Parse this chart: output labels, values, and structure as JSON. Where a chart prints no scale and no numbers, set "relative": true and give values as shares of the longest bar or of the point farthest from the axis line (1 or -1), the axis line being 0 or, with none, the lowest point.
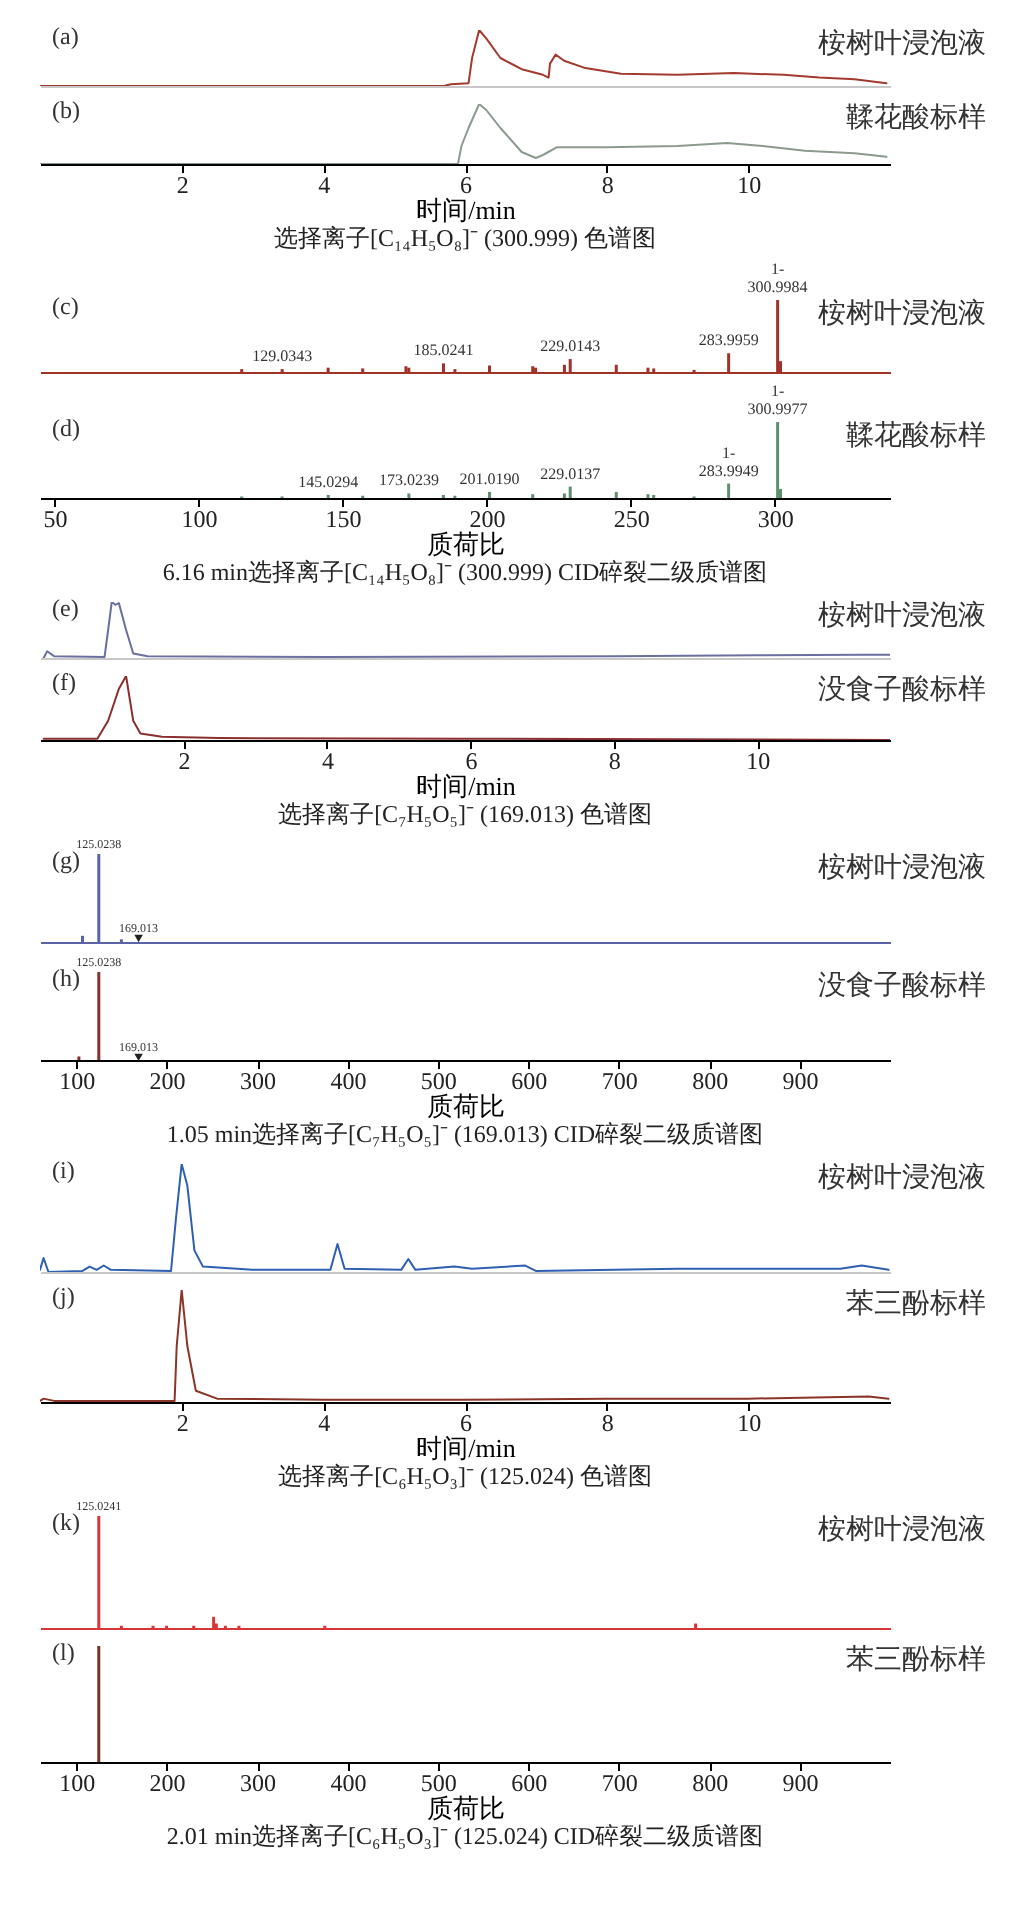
{
  "chart_data": [
    {
      "type": "line",
      "relative": true,
      "tick_labels": false,
      "xlim": [
        0,
        12
      ],
      "color": "#a23a2e",
      "annotations": [
        "(a)",
        "桉树叶浸泡液"
      ],
      "x": [
        0,
        5.7,
        5.8,
        6.05,
        6.1,
        6.2,
        6.3,
        6.5,
        6.8,
        7.1,
        7.18,
        7.2,
        7.28,
        7.4,
        7.7,
        8.2,
        9,
        9.8,
        10.5,
        11,
        11.5,
        11.95
      ],
      "values": [
        0,
        0,
        0.03,
        0.05,
        0.5,
        1,
        0.85,
        0.5,
        0.3,
        0.2,
        0.15,
        0.4,
        0.56,
        0.45,
        0.32,
        0.22,
        0.2,
        0.23,
        0.2,
        0.15,
        0.12,
        0.05
      ]
    },
    {
      "type": "line",
      "relative": true,
      "tick_labels": "x",
      "xlim": [
        0,
        12
      ],
      "xticks": [
        2,
        4,
        6,
        8,
        10
      ],
      "xlabel": "时间/min",
      "title": "选择离子[C₁₄H₅O₈]⁻ (300.999) 色谱图",
      "color": "#8c9a8e",
      "annotations": [
        "(b)",
        "鞣花酸标样"
      ],
      "x": [
        0,
        5.9,
        5.95,
        6.05,
        6.2,
        6.3,
        6.5,
        6.8,
        7,
        7.1,
        7.3,
        8,
        9,
        9.7,
        10.2,
        10.8,
        11.5,
        11.95
      ],
      "values": [
        0,
        0,
        0.3,
        0.6,
        1,
        0.9,
        0.6,
        0.2,
        0.1,
        0.15,
        0.28,
        0.28,
        0.3,
        0.35,
        0.3,
        0.22,
        0.18,
        0.12
      ]
    },
    {
      "type": "bar",
      "relative": true,
      "tick_labels": false,
      "xlim": [
        45,
        340
      ],
      "color": "#a0322a",
      "annotations": [
        "(c)",
        "桉树叶浸泡液",
        {
          "text": "129.0343",
          "x": 129.0343,
          "y": 0.04
        },
        {
          "text": "185.0241",
          "x": 185.0241,
          "y": 0.12
        },
        {
          "text": "229.0143",
          "x": 229.0143,
          "y": 0.18
        },
        {
          "text": "283.9959",
          "x": 283.9959,
          "y": 0.26
        },
        {
          "text": "300.9984",
          "x": 300.9984,
          "y": 1
        },
        {
          "text": "1-",
          "x": 300.9984,
          "y": 1
        }
      ],
      "x": [
        115,
        129.0343,
        145,
        157,
        172,
        173,
        185.0241,
        189,
        201,
        216,
        217,
        227,
        229.0143,
        245,
        256,
        258,
        272,
        283.9959,
        300.9984,
        302
      ],
      "values": [
        0.04,
        0.04,
        0.06,
        0.05,
        0.08,
        0.06,
        0.12,
        0.04,
        0.09,
        0.08,
        0.06,
        0.1,
        0.18,
        0.1,
        0.06,
        0.05,
        0.03,
        0.26,
        1,
        0.15
      ]
    },
    {
      "type": "bar",
      "relative": true,
      "tick_labels": "x",
      "xlim": [
        45,
        340
      ],
      "xticks": [
        50,
        100,
        150,
        200,
        250,
        300
      ],
      "xlabel": "质荷比",
      "title": "6.16 min选择离子[C₁₄H₅O₈]⁻ (300.999) CID碎裂二级质谱图",
      "color": "#5e8f6e",
      "annotations": [
        "(d)",
        "鞣花酸标样",
        {
          "text": "145.0294",
          "x": 145.0294,
          "y": 0.04
        },
        {
          "text": "173.0239",
          "x": 173.0239,
          "y": 0.06
        },
        {
          "text": "201.0190",
          "x": 201.019,
          "y": 0.08
        },
        {
          "text": "229.0137",
          "x": 229.0137,
          "y": 0.15
        },
        {
          "text": "283.9949",
          "x": 283.9949,
          "y": 0.19
        },
        {
          "text": "1-",
          "x": 283.9949,
          "y": 0.19
        },
        {
          "text": "300.9977",
          "x": 300.9977,
          "y": 1
        },
        {
          "text": "1-",
          "x": 300.9977,
          "y": 1
        }
      ],
      "x": [
        115,
        129,
        145.0294,
        157,
        173.0239,
        185,
        189,
        201.019,
        216,
        227,
        229.0137,
        245,
        256,
        258,
        272,
        283.9949,
        300.9977,
        302
      ],
      "values": [
        0.02,
        0.02,
        0.04,
        0.03,
        0.06,
        0.04,
        0.03,
        0.08,
        0.05,
        0.06,
        0.15,
        0.08,
        0.05,
        0.04,
        0.02,
        0.19,
        1,
        0.12
      ]
    },
    {
      "type": "line",
      "relative": true,
      "tick_labels": false,
      "xlim": [
        0,
        11.85
      ],
      "color": "#6b6fa0",
      "annotations": [
        "(e)",
        "桉树叶浸泡液"
      ],
      "x": [
        0.05,
        0.1,
        0.2,
        0.9,
        0.95,
        1,
        1.05,
        1.1,
        1.2,
        1.3,
        1.5,
        4,
        8,
        10,
        11.5,
        11.85
      ],
      "values": [
        0,
        0.12,
        0.03,
        0.02,
        0.5,
        1,
        0.95,
        0.98,
        0.5,
        0.08,
        0.03,
        0.02,
        0.03,
        0.05,
        0.06,
        0.06
      ]
    },
    {
      "type": "line",
      "relative": true,
      "tick_labels": "x",
      "xlim": [
        0,
        11.85
      ],
      "xticks": [
        2,
        4,
        6,
        8,
        10
      ],
      "xlabel": "时间/min",
      "title": "选择离子[C₇H₅O₅]⁻ (169.013) 色谱图",
      "color": "#8b2e2e",
      "annotations": [
        "(f)",
        "没食子酸标样"
      ],
      "x": [
        0.05,
        0.8,
        0.95,
        1.1,
        1.2,
        1.3,
        1.4,
        1.7,
        2.5,
        6,
        11.85
      ],
      "values": [
        0.02,
        0.02,
        0.3,
        0.8,
        1,
        0.3,
        0.1,
        0.05,
        0.03,
        0.02,
        0
      ]
    },
    {
      "type": "bar",
      "relative": true,
      "tick_labels": false,
      "xlim": [
        60,
        1000
      ],
      "annotations": [
        "(g)",
        "桉树叶浸泡液",
        {
          "text": "125.0238",
          "x": 125.0238,
          "y": 1
        },
        {
          "text": "169.013",
          "x": 169.013,
          "y": 0.04
        }
      ],
      "series": [
        {
          "color": "#5a62a8",
          "x": [
            107,
            125.0238,
            150
          ],
          "values": [
            0.07,
            1,
            0.03
          ]
        },
        {
          "type": "scatter",
          "marker": "triangle",
          "color": "#222222",
          "x": [
            169.013
          ],
          "values": [
            0.04
          ]
        }
      ]
    },
    {
      "type": "bar",
      "relative": true,
      "tick_labels": "x",
      "xlim": [
        60,
        1000
      ],
      "xticks": [
        100,
        200,
        300,
        400,
        500,
        600,
        700,
        800,
        900
      ],
      "xlabel": "质荷比",
      "title": "1.05 min选择离子[C₇H₅O₅]⁻ (169.013) CID碎裂二级质谱图",
      "annotations": [
        "(h)",
        "没食子酸标样",
        {
          "text": "125.0238",
          "x": 125.0238,
          "y": 1
        },
        {
          "text": "169.013",
          "x": 169.013,
          "y": 0.03
        }
      ],
      "series": [
        {
          "color": "#8b2e2e",
          "x": [
            103,
            125.0238
          ],
          "values": [
            0.04,
            1
          ]
        },
        {
          "type": "scatter",
          "marker": "triangle",
          "color": "#222222",
          "x": [
            169.013
          ],
          "values": [
            0.03
          ]
        }
      ]
    },
    {
      "type": "line",
      "relative": true,
      "tick_labels": false,
      "xlim": [
        0,
        12
      ],
      "color": "#2f5fb3",
      "annotations": [
        "(i)",
        "桉树叶浸泡液"
      ],
      "x": [
        0,
        0.05,
        0.12,
        0.6,
        0.7,
        0.8,
        0.9,
        1,
        1.85,
        1.92,
        2,
        2.08,
        2.18,
        2.3,
        3,
        4.1,
        4.2,
        4.3,
        5.1,
        5.2,
        5.3,
        5.85,
        6.1,
        6.85,
        7,
        9,
        11.3,
        11.6,
        11.98
      ],
      "values": [
        0.02,
        0.13,
        0,
        0.01,
        0.05,
        0.02,
        0.06,
        0.02,
        0.01,
        0.5,
        1,
        0.8,
        0.2,
        0.05,
        0.02,
        0.02,
        0.26,
        0.03,
        0.02,
        0.12,
        0.02,
        0.05,
        0.03,
        0.06,
        0.01,
        0.03,
        0.03,
        0.06,
        0.02
      ]
    },
    {
      "type": "line",
      "relative": true,
      "tick_labels": "x",
      "xlim": [
        0,
        12
      ],
      "xticks": [
        2,
        4,
        6,
        8,
        10
      ],
      "xlabel": "时间/min",
      "title": "选择离子[C₆H₅O₃]⁻ (125.024) 色谱图",
      "color": "#8b3528",
      "annotations": [
        "(j)",
        "苯三酚标样"
      ],
      "x": [
        0,
        0.05,
        0.2,
        1.9,
        1.93,
        2,
        2.08,
        2.2,
        2.5,
        4,
        6,
        8,
        10,
        11.7,
        11.98
      ],
      "values": [
        0.01,
        0.03,
        0.01,
        0.01,
        0.5,
        1,
        0.5,
        0.1,
        0.03,
        0.02,
        0.02,
        0.03,
        0.03,
        0.05,
        0.03
      ]
    },
    {
      "type": "bar",
      "relative": true,
      "tick_labels": false,
      "xlim": [
        60,
        1000
      ],
      "color": "#d8353a",
      "annotations": [
        "(k)",
        "桉树叶浸泡液",
        {
          "text": "125.0241",
          "x": 125.0241,
          "y": 1
        }
      ],
      "x": [
        125.0241,
        150,
        185,
        200,
        230,
        252,
        255,
        265,
        280,
        375,
        785
      ],
      "values": [
        1,
        0.02,
        0.02,
        0.02,
        0.02,
        0.1,
        0.04,
        0.02,
        0.02,
        0.02,
        0.04
      ]
    },
    {
      "type": "bar",
      "relative": true,
      "tick_labels": "x",
      "xlim": [
        60,
        1000
      ],
      "xticks": [
        100,
        200,
        300,
        400,
        500,
        600,
        700,
        800,
        900
      ],
      "xlabel": "质荷比",
      "title": "2.01 min选择离子[C₆H₅O₃]⁻ (125.024) CID碎裂二级质谱图",
      "color": "#7b3325",
      "annotations": [
        "(l)",
        "苯三酚标样"
      ],
      "x": [
        125
      ],
      "values": [
        1
      ]
    }
  ]
}
